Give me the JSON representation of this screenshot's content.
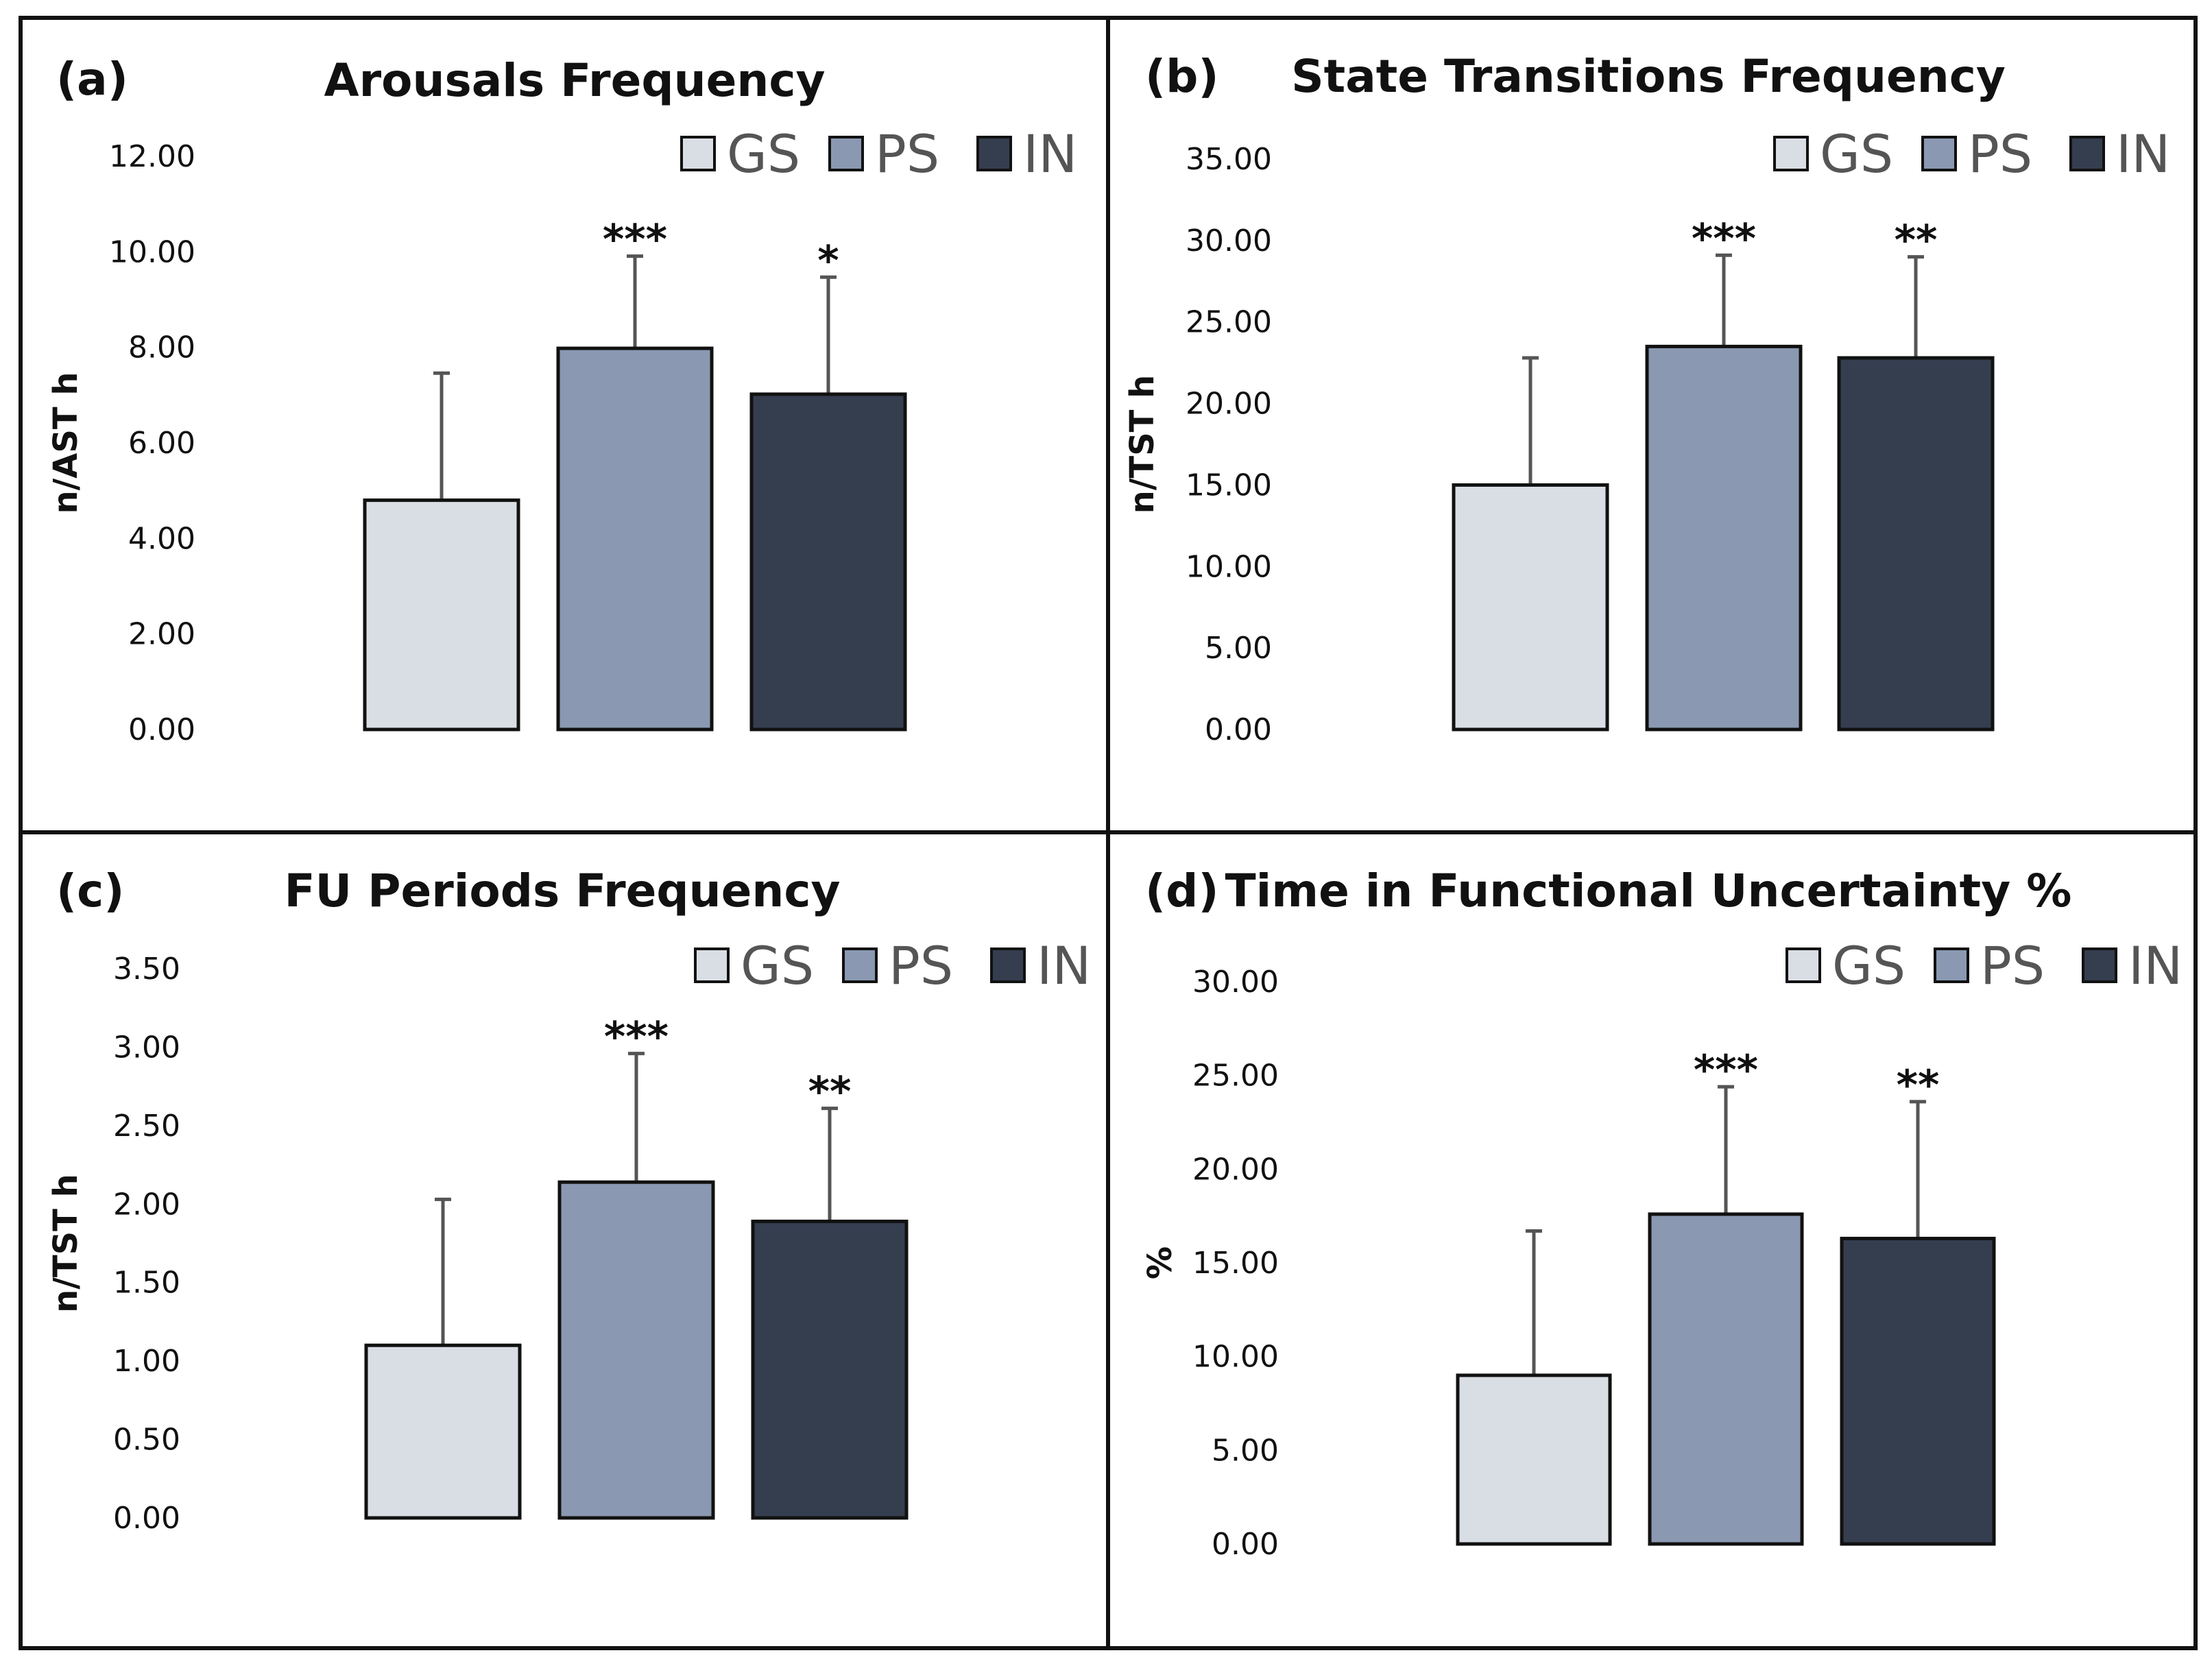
{
  "chart_data": [
    {
      "panel": "(a)",
      "type": "bar",
      "title": "Arousals Frequency",
      "ylabel": "n/AST h",
      "ylim": [
        0,
        12
      ],
      "yticks": [
        "0.00",
        "2.00",
        "4.00",
        "6.00",
        "8.00",
        "10.00",
        "12.00"
      ],
      "categories": [
        "GS",
        "PS",
        "IN"
      ],
      "values": [
        4.8,
        7.98,
        7.02
      ],
      "errors": [
        2.66,
        1.93,
        2.45
      ],
      "significance": [
        "",
        "***",
        "*"
      ]
    },
    {
      "panel": "(b)",
      "type": "bar",
      "title": "State Transitions Frequency",
      "ylabel": "n/TST h",
      "ylim": [
        0,
        35
      ],
      "yticks": [
        "0.00",
        "5.00",
        "10.00",
        "15.00",
        "20.00",
        "25.00",
        "30.00",
        "35.00"
      ],
      "categories": [
        "GS",
        "PS",
        "IN"
      ],
      "values": [
        15.0,
        23.5,
        22.8
      ],
      "errors": [
        7.8,
        5.6,
        6.2
      ],
      "significance": [
        "",
        "***",
        "**"
      ]
    },
    {
      "panel": "(c)",
      "type": "bar",
      "title": "FU Periods Frequency",
      "ylabel": "n/TST h",
      "ylim": [
        0,
        3.5
      ],
      "yticks": [
        "0.00",
        "0.50",
        "1.00",
        "1.50",
        "2.00",
        "2.50",
        "3.00",
        "3.50"
      ],
      "categories": [
        "GS",
        "PS",
        "IN"
      ],
      "values": [
        1.1,
        2.14,
        1.89
      ],
      "errors": [
        0.93,
        0.82,
        0.72
      ],
      "significance": [
        "",
        "***",
        "**"
      ]
    },
    {
      "panel": "(d)",
      "type": "bar",
      "title": "Time in Functional Uncertainty %",
      "ylabel": "%",
      "ylim": [
        0,
        30
      ],
      "yticks": [
        "0.00",
        "5.00",
        "10.00",
        "15.00",
        "20.00",
        "25.00",
        "30.00"
      ],
      "categories": [
        "GS",
        "PS",
        "IN"
      ],
      "values": [
        9.0,
        17.6,
        16.3
      ],
      "errors": [
        7.7,
        6.8,
        7.3
      ],
      "significance": [
        "",
        "***",
        "**"
      ]
    }
  ],
  "colors": {
    "GS": "#d9dde4",
    "PS": "#8a99b1",
    "IN": "#353e4f",
    "error_bar": "#555555",
    "border": "#111111"
  }
}
